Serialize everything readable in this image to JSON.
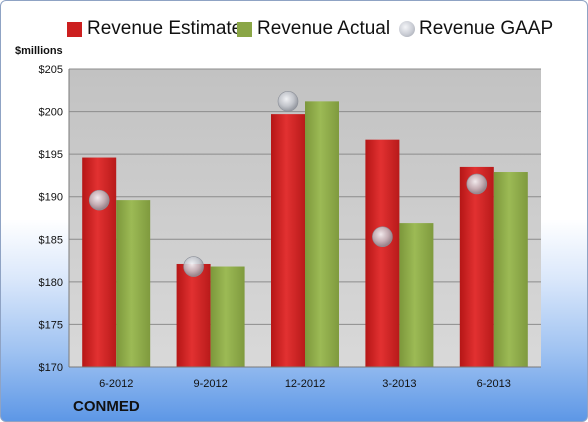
{
  "chart_data": {
    "type": "bar",
    "title": "",
    "ylabel": "$millions",
    "xlabel": "",
    "company": "CONMED",
    "categories": [
      "6-2012",
      "9-2012",
      "12-2012",
      "3-2013",
      "6-2013"
    ],
    "series": [
      {
        "name": "Revenue Estimate",
        "kind": "bar",
        "color": "#cc1f1f",
        "values": [
          194.6,
          182.1,
          199.7,
          196.7,
          193.5
        ]
      },
      {
        "name": "Revenue Actual",
        "kind": "bar",
        "color": "#8aa646",
        "values": [
          189.6,
          181.8,
          201.2,
          186.9,
          192.9
        ]
      },
      {
        "name": "Revenue GAAP",
        "kind": "marker",
        "color": "#c0c4cc",
        "values": [
          189.6,
          181.8,
          201.2,
          185.3,
          191.5
        ]
      }
    ],
    "ylim": [
      170,
      205
    ],
    "yticks": [
      170,
      175,
      180,
      185,
      190,
      195,
      200,
      205
    ],
    "ytick_labels": [
      "$170",
      "$175",
      "$180",
      "$185",
      "$190",
      "$195",
      "$200",
      "$205"
    ],
    "grid": true,
    "legend_position": "top"
  }
}
